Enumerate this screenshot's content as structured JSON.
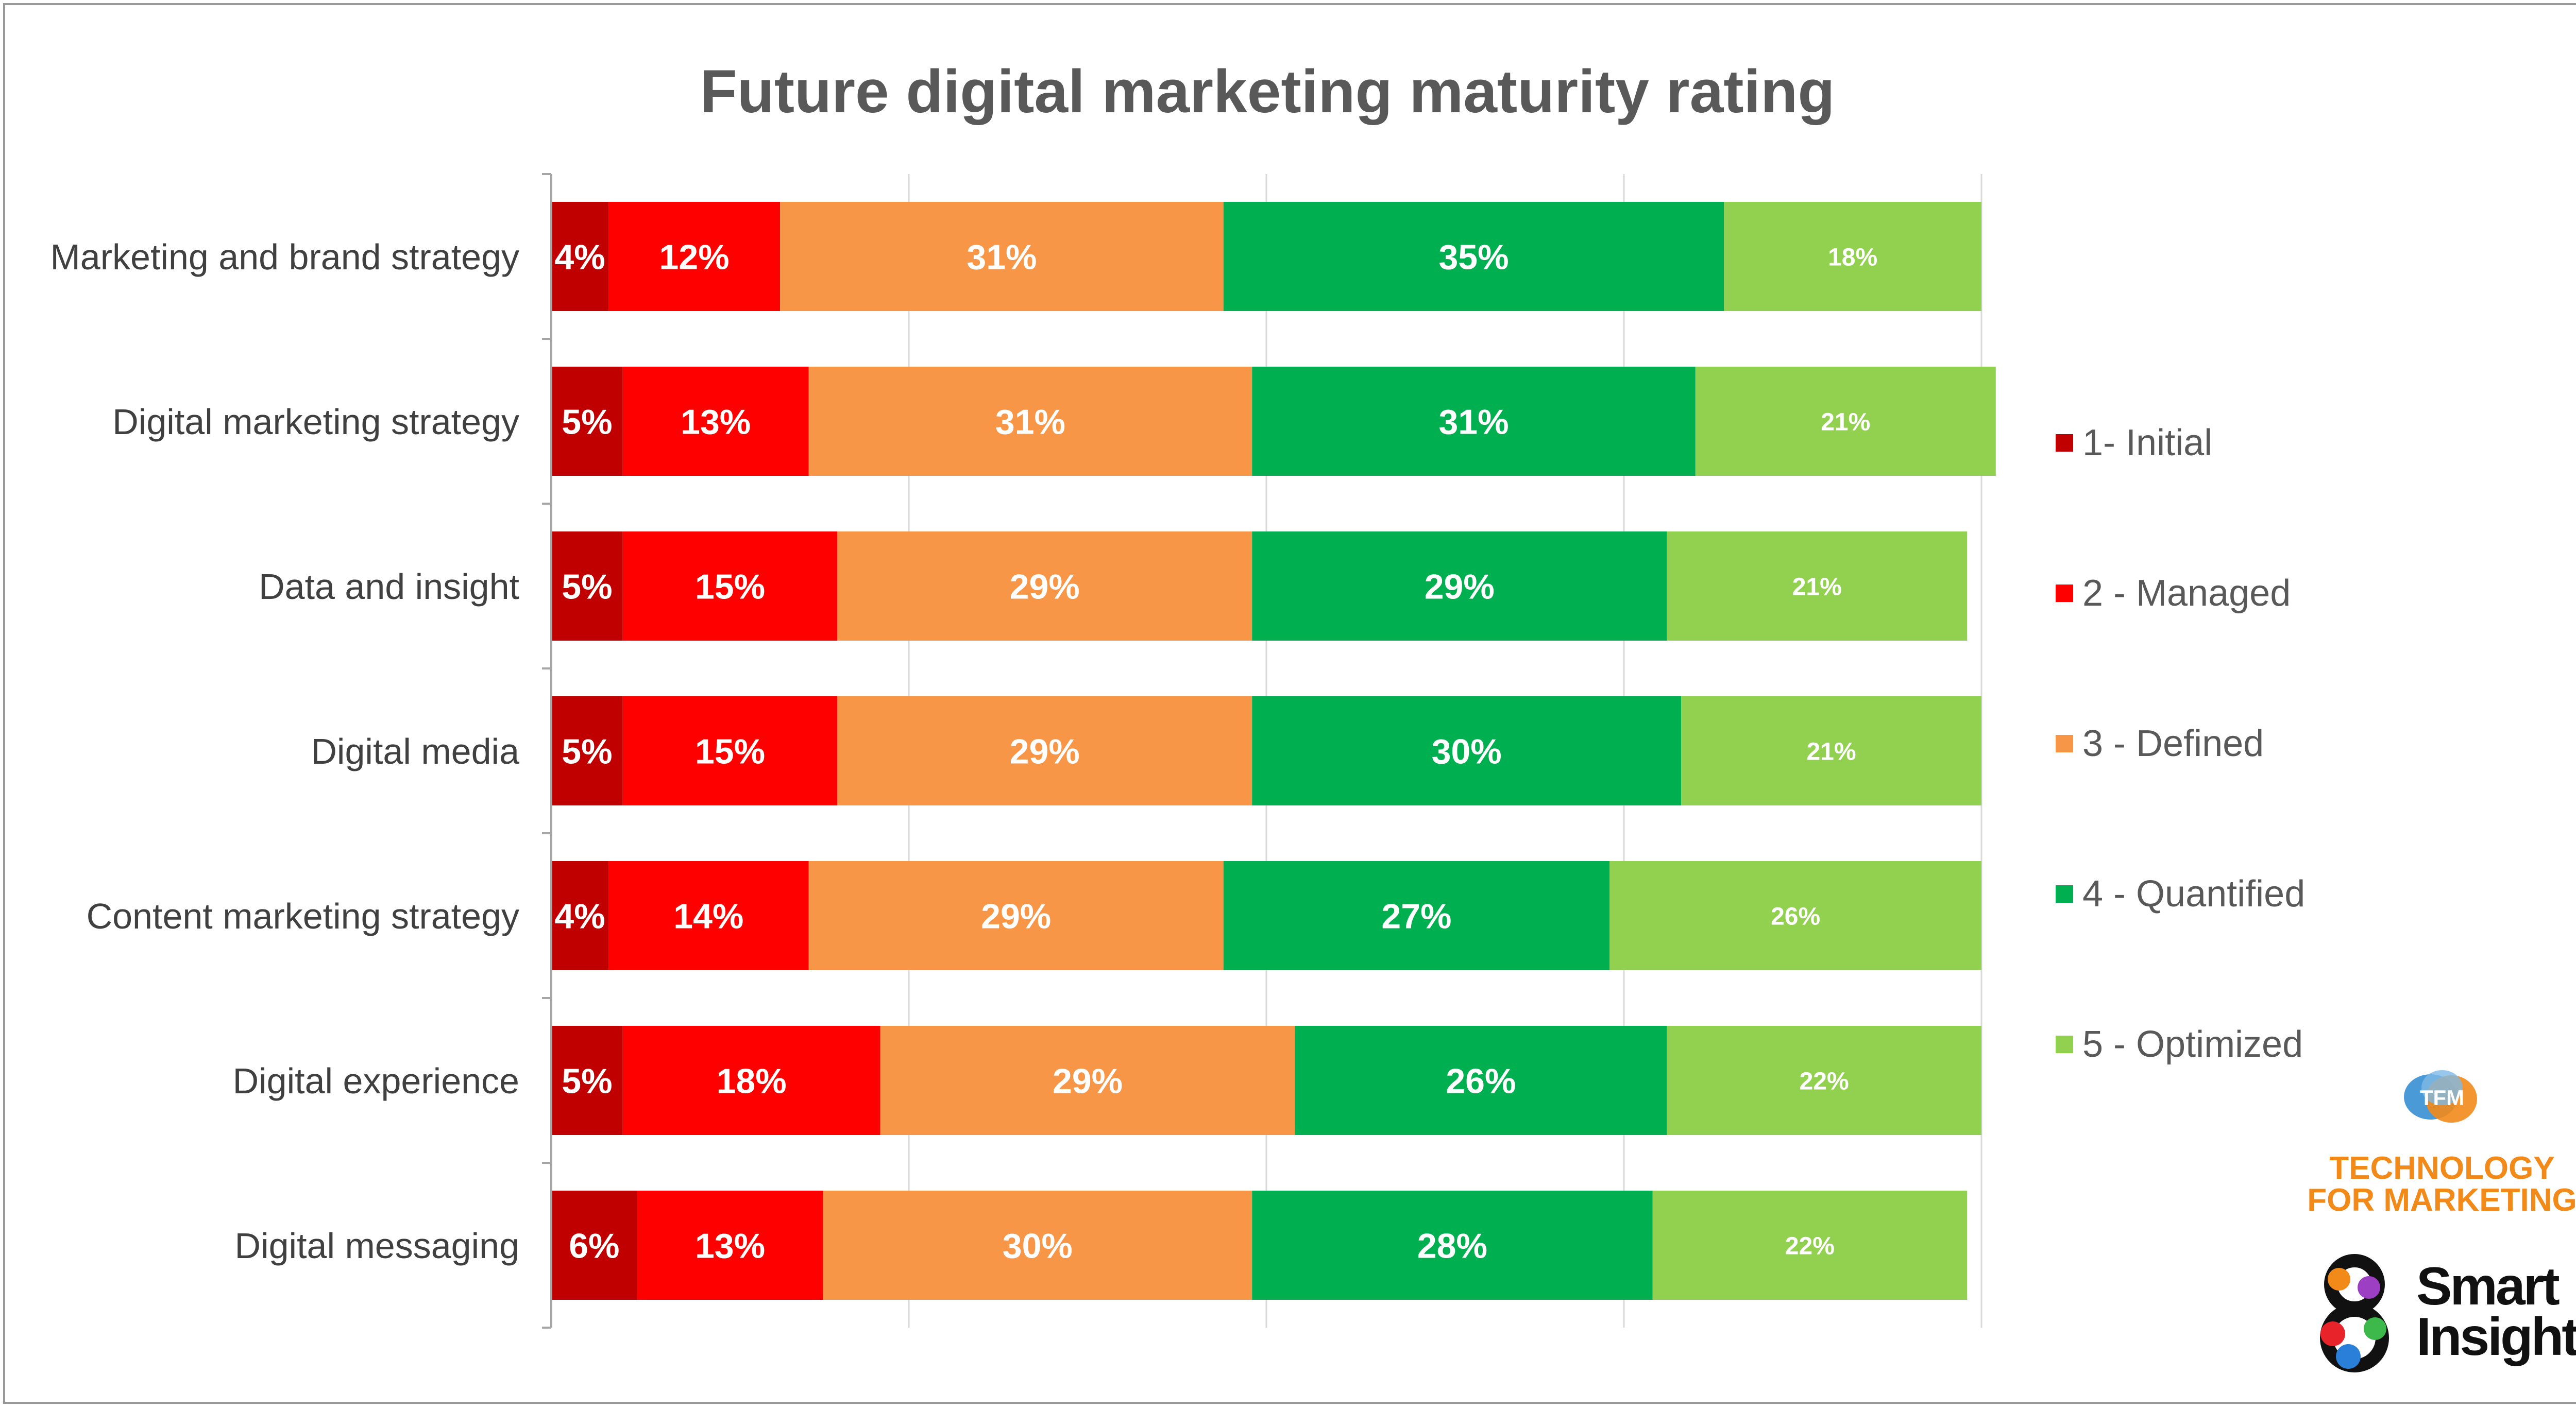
{
  "title": "Future digital marketing maturity rating",
  "colors": {
    "initial": "#c00000",
    "managed": "#ff0000",
    "defined": "#f79646",
    "quantified": "#00b050",
    "optimized": "#92d050",
    "title": "#595959",
    "text": "#404040"
  },
  "legend": [
    {
      "label": "1- Initial",
      "color": "#c00000"
    },
    {
      "label": "2 - Managed",
      "color": "#ff0000"
    },
    {
      "label": "3 - Defined",
      "color": "#f79646"
    },
    {
      "label": "4 - Quantified",
      "color": "#00b050"
    },
    {
      "label": "5 - Optimized",
      "color": "#92d050"
    }
  ],
  "logos": {
    "tfm_icon": "TFM",
    "tfm_line1": "TECHNOLOGY",
    "tfm_line2": "FOR MARKETING",
    "si_line1": "Smart",
    "si_line2": "Insights"
  },
  "chart_data": {
    "type": "bar",
    "orientation": "horizontal",
    "stacked": true,
    "title": "Future digital marketing maturity rating",
    "categories": [
      "Marketing and brand strategy",
      "Digital marketing strategy",
      "Data and insight",
      "Digital media",
      "Content marketing strategy",
      "Digital experience",
      "Digital messaging"
    ],
    "series": [
      {
        "name": "1- Initial",
        "color": "#c00000",
        "values": [
          4,
          5,
          5,
          5,
          4,
          5,
          6
        ],
        "labels": [
          "4%",
          "5%",
          "5%",
          "5%",
          "4%",
          "5%",
          "6%"
        ]
      },
      {
        "name": "2 - Managed",
        "color": "#ff0000",
        "values": [
          12,
          13,
          15,
          15,
          14,
          18,
          13
        ],
        "labels": [
          "12%",
          "13%",
          "15%",
          "15%",
          "14%",
          "18%",
          "13%"
        ]
      },
      {
        "name": "3 - Defined",
        "color": "#f79646",
        "values": [
          31,
          31,
          29,
          29,
          29,
          29,
          30
        ],
        "labels": [
          "31%",
          "31%",
          "29%",
          "29%",
          "29%",
          "29%",
          "30%"
        ]
      },
      {
        "name": "4 - Quantified",
        "color": "#00b050",
        "values": [
          35,
          31,
          29,
          30,
          27,
          26,
          28
        ],
        "labels": [
          "35%",
          "31%",
          "29%",
          "30%",
          "27%",
          "26%",
          "28%"
        ]
      },
      {
        "name": "5 - Optimized",
        "color": "#92d050",
        "values": [
          18,
          21,
          21,
          21,
          26,
          22,
          22
        ],
        "labels": [
          "18%",
          "21%",
          "21%",
          "21%",
          "26%",
          "22%",
          "22%"
        ]
      }
    ],
    "xlim": [
      0,
      100
    ],
    "grid": true,
    "legend_position": "right"
  }
}
